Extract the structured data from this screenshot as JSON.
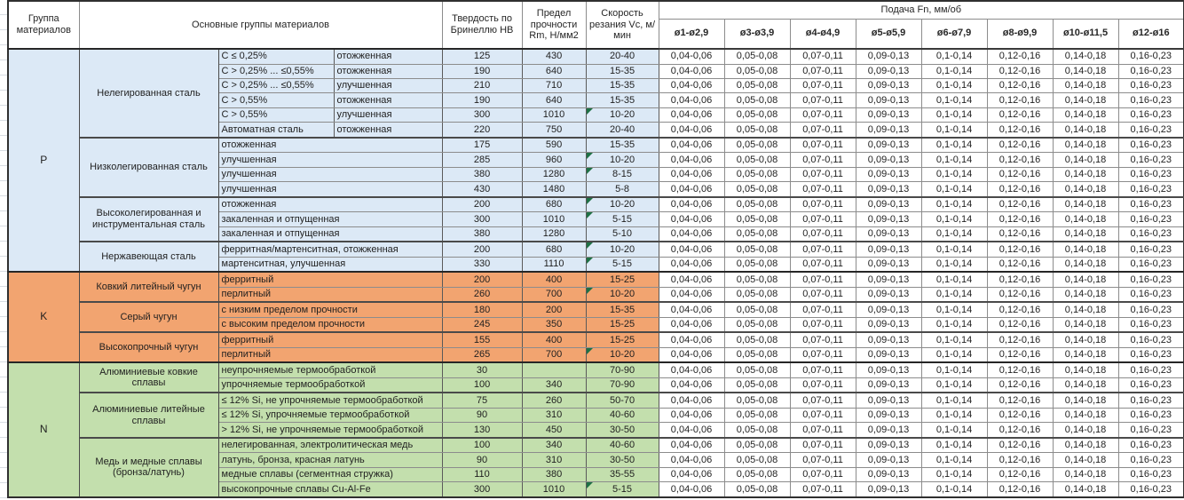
{
  "header": {
    "col_group": "Группа материалов",
    "col_main": "Основные группы материалов",
    "col_hb": "Твердость по Бринеллю НВ",
    "col_rm": "Предел прочности Rm, Н/мм2",
    "col_vc": "Скорость резания Vc, м/мин",
    "col_feed": "Подача Fn, мм/об",
    "feed_cols": [
      "ø1-ø2,9",
      "ø3-ø3,9",
      "ø4-ø4,9",
      "ø5-ø5,9",
      "ø6-ø7,9",
      "ø8-ø9,9",
      "ø10-ø11,5",
      "ø12-ø16"
    ]
  },
  "feed_values": [
    "0,04-0,06",
    "0,05-0,08",
    "0,07-0,11",
    "0,09-0,13",
    "0,1-0,14",
    "0,12-0,16",
    "0,14-0,18",
    "0,16-0,23"
  ],
  "colors": {
    "group_p": "#dce9f6",
    "group_k": "#f2a470",
    "group_n": "#c3dfad",
    "comment_flag": "#1e7145"
  },
  "groups": [
    {
      "code": "P",
      "color": "#dce9f6",
      "blocks": [
        {
          "name": "Нелегированная сталь",
          "rows": [
            {
              "c1": "C ≤ 0,25%",
              "c2": "отожженная",
              "hb": "125",
              "rm": "430",
              "vc": "20-40",
              "flag": false
            },
            {
              "c1": "C > 0,25% ... ≤0,55%",
              "c2": "отожженная",
              "hb": "190",
              "rm": "640",
              "vc": "15-35",
              "flag": false
            },
            {
              "c1": "C > 0,25% ... ≤0,55%",
              "c2": "улучшенная",
              "hb": "210",
              "rm": "710",
              "vc": "15-35",
              "flag": false
            },
            {
              "c1": "C > 0,55%",
              "c2": "отожженная",
              "hb": "190",
              "rm": "640",
              "vc": "15-35",
              "flag": false
            },
            {
              "c1": "C > 0,55%",
              "c2": "улучшенная",
              "hb": "300",
              "rm": "1010",
              "vc": "10-20",
              "flag": true
            },
            {
              "c1": "Автоматная сталь",
              "c2": "отожженная",
              "hb": "220",
              "rm": "750",
              "vc": "20-40",
              "flag": false
            }
          ]
        },
        {
          "name": "Низколегированная сталь",
          "rows": [
            {
              "c1": "отожженная",
              "hb": "175",
              "rm": "590",
              "vc": "15-35",
              "flag": false
            },
            {
              "c1": "улучшенная",
              "hb": "285",
              "rm": "960",
              "vc": "10-20",
              "flag": true
            },
            {
              "c1": "улучшенная",
              "hb": "380",
              "rm": "1280",
              "vc": "8-15",
              "flag": true
            },
            {
              "c1": "улучшенная",
              "hb": "430",
              "rm": "1480",
              "vc": "5-8",
              "flag": false
            }
          ]
        },
        {
          "name": "Высоколегированная и инструментальная сталь",
          "rows": [
            {
              "c1": "отожженная",
              "hb": "200",
              "rm": "680",
              "vc": "10-20",
              "flag": true
            },
            {
              "c1": "закаленная и отпущенная",
              "hb": "300",
              "rm": "1010",
              "vc": "5-15",
              "flag": true
            },
            {
              "c1": "закаленная и отпущенная",
              "hb": "380",
              "rm": "1280",
              "vc": "5-10",
              "flag": false
            }
          ]
        },
        {
          "name": "Нержавеющая сталь",
          "rows": [
            {
              "c1": "ферритная/мартенситная, отожженная",
              "hb": "200",
              "rm": "680",
              "vc": "10-20",
              "flag": true
            },
            {
              "c1": "мартенситная, улучшенная",
              "hb": "330",
              "rm": "1110",
              "vc": "5-15",
              "flag": true
            }
          ]
        }
      ]
    },
    {
      "code": "K",
      "color": "#f2a470",
      "blocks": [
        {
          "name": "Ковкий литейный чугун",
          "rows": [
            {
              "c1": "ферритный",
              "hb": "200",
              "rm": "400",
              "vc": "15-25",
              "flag": false
            },
            {
              "c1": "перлитный",
              "hb": "260",
              "rm": "700",
              "vc": "10-20",
              "flag": true
            }
          ]
        },
        {
          "name": "Серый чугун",
          "rows": [
            {
              "c1": "с низким пределом прочности",
              "hb": "180",
              "rm": "200",
              "vc": "15-35",
              "flag": false
            },
            {
              "c1": "с высоким пределом прочности",
              "hb": "245",
              "rm": "350",
              "vc": "15-25",
              "flag": false
            }
          ]
        },
        {
          "name": "Высокопрочный чугун",
          "rows": [
            {
              "c1": "ферритный",
              "hb": "155",
              "rm": "400",
              "vc": "15-25",
              "flag": false
            },
            {
              "c1": "перлитный",
              "hb": "265",
              "rm": "700",
              "vc": "10-20",
              "flag": true
            }
          ]
        }
      ]
    },
    {
      "code": "N",
      "color": "#c3dfad",
      "blocks": [
        {
          "name": "Алюминиевые ковкие сплавы",
          "rows": [
            {
              "c1": "неупрочняемые термообработкой",
              "hb": "30",
              "rm": "",
              "vc": "70-90",
              "flag": false
            },
            {
              "c1": "упрочняемые термообработкой",
              "hb": "100",
              "rm": "340",
              "vc": "70-90",
              "flag": false
            }
          ]
        },
        {
          "name": "Алюминиевые литейные сплавы",
          "rows": [
            {
              "c1": "≤ 12% Si, не упрочняемые термообработкой",
              "hb": "75",
              "rm": "260",
              "vc": "50-70",
              "flag": false
            },
            {
              "c1": "≤ 12% Si, упрочняемые термообработкой",
              "hb": "90",
              "rm": "310",
              "vc": "40-60",
              "flag": false
            },
            {
              "c1": "> 12% Si, не упрочняемые термообработкой",
              "hb": "130",
              "rm": "450",
              "vc": "30-50",
              "flag": false
            }
          ]
        },
        {
          "name": "Медь и медные сплавы (бронза/латунь)",
          "rows": [
            {
              "c1": "нелегированная, электролитическая медь",
              "hb": "100",
              "rm": "340",
              "vc": "40-60",
              "flag": false
            },
            {
              "c1": "латунь, бронза, красная латунь",
              "hb": "90",
              "rm": "310",
              "vc": "30-50",
              "flag": false
            },
            {
              "c1": "медные сплавы (сегментная стружка)",
              "hb": "110",
              "rm": "380",
              "vc": "35-55",
              "flag": false
            },
            {
              "c1": "высокопрочные сплавы Cu-Al-Fe",
              "hb": "300",
              "rm": "1010",
              "vc": "5-15",
              "flag": true
            }
          ]
        }
      ]
    }
  ]
}
